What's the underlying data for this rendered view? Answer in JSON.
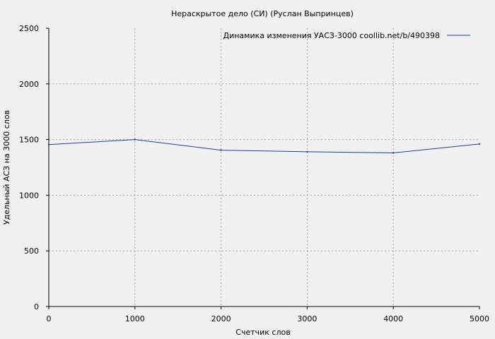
{
  "chart_data": {
    "type": "line",
    "title": "Нераскрытое дело (СИ) (Руслан Выпринцев)",
    "xlabel": "Счетчик слов",
    "ylabel": "Удельный АСЗ на 3000 слов",
    "xlim": [
      0,
      5000
    ],
    "ylim": [
      0,
      2500
    ],
    "xticks": [
      0,
      1000,
      2000,
      3000,
      4000,
      5000
    ],
    "yticks": [
      0,
      500,
      1000,
      1500,
      2000,
      2500
    ],
    "grid": true,
    "legend_position": "top-right",
    "colors": {
      "background": "#f0f0f0",
      "series": "#1f3f8f",
      "grid": "#a0a0a0",
      "axis": "#000000"
    },
    "series": [
      {
        "name": "Динамика изменения УАСЗ-3000  coollib.net/b/490398",
        "x": [
          0,
          1000,
          2000,
          3000,
          4000,
          5000
        ],
        "y": [
          1455,
          1500,
          1405,
          1390,
          1380,
          1460
        ]
      }
    ]
  }
}
